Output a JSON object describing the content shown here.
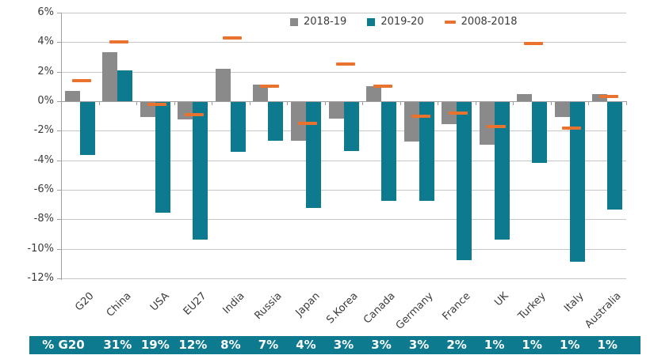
{
  "colors": {
    "bar_2018_19": "#8a8a8a",
    "bar_2019_20": "#0e7a90",
    "marker_2008_2018": "#e9722e",
    "gridline": "#c6c6c6",
    "axis": "#9e9e9e",
    "tick_label": "#3b3b3b",
    "band_bg": "#0e7a90",
    "band_text": "#ffffff"
  },
  "legend": [
    {
      "label": "2018-19",
      "marker": "square"
    },
    {
      "label": "2019-20",
      "marker": "square"
    },
    {
      "label": "2008-2018",
      "marker": "dash"
    }
  ],
  "chart_data": {
    "type": "bar",
    "title": "",
    "xlabel": "",
    "ylabel": "",
    "categories": [
      "G20",
      "China",
      "USA",
      "EU27",
      "India",
      "Russia",
      "Japan",
      "S.Korea",
      "Canada",
      "Germany",
      "France",
      "UK",
      "Turkey",
      "Italy",
      "Australia"
    ],
    "series": [
      {
        "name": "2018-19",
        "type": "bar",
        "values": [
          0.7,
          3.3,
          -1.0,
          -1.2,
          2.2,
          1.1,
          -2.6,
          -1.1,
          1.0,
          -2.7,
          -1.5,
          -2.9,
          0.5,
          -1.0,
          0.5
        ]
      },
      {
        "name": "2019-20",
        "type": "bar",
        "values": [
          -3.6,
          2.1,
          -7.5,
          -9.3,
          -3.4,
          -2.6,
          -7.2,
          -3.3,
          -6.7,
          -6.7,
          -10.7,
          -9.3,
          -4.1,
          -10.8,
          -7.3
        ]
      },
      {
        "name": "2008-2018",
        "type": "dash-marker",
        "values": [
          1.4,
          4.0,
          -0.2,
          -0.9,
          4.3,
          1.0,
          -1.5,
          2.5,
          1.0,
          -1.0,
          -0.8,
          -1.7,
          3.9,
          -1.8,
          0.3
        ]
      }
    ],
    "ylim": [
      -12,
      6
    ],
    "ytick_step": 2,
    "ytick_labels": [
      "6%",
      "4%",
      "2%",
      "0%",
      "-2%",
      "-4%",
      "-6%",
      "-8%",
      "-10%",
      "-12%"
    ],
    "grid": true,
    "legend_position": "top"
  },
  "footer_table": {
    "row_label": "% G20",
    "values": [
      "31%",
      "19%",
      "12%",
      "8%",
      "7%",
      "4%",
      "3%",
      "3%",
      "3%",
      "2%",
      "1%",
      "1%",
      "1%",
      "1%"
    ]
  }
}
